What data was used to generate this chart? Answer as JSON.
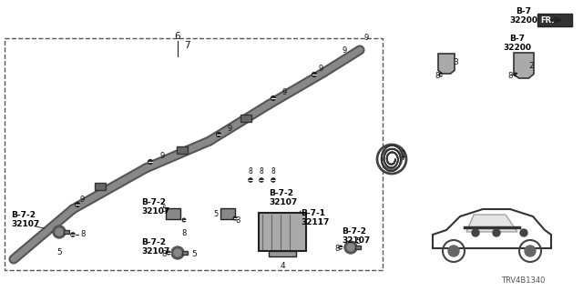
{
  "bg_color": "#ffffff",
  "fig_width": 6.4,
  "fig_height": 3.2,
  "dpi": 100,
  "watermark": "TRV4B1340",
  "labels": {
    "b7_32200_top": "B-7\n32200",
    "b7_32200_right": "B-7\n32200",
    "fr_arrow": "FR.",
    "b72_32107_left": "B-7-2\n32107",
    "b72_32107_mid1": "B-7-2\n32107",
    "b72_32107_mid2": "B-7-2\n32107",
    "b72_32107_mid3": "B-7-2\n32107",
    "b72_32107_mid4": "B-7-2\n32107",
    "b71_32117": "B-7-1\n32117",
    "num1": "1",
    "num2": "2",
    "num3": "3",
    "num4": "4",
    "num5a": "5",
    "num5b": "5",
    "num5c": "5",
    "num6": "6",
    "num7": "7",
    "num8a": "8",
    "num8b": "8",
    "num8c": "8",
    "num8d": "8",
    "num8e": "8",
    "num8f": "8",
    "num8g": "8",
    "num9a": "9",
    "num9b": "9",
    "num9c": "9",
    "num9d": "9",
    "num9e": "9",
    "num9f": "9"
  },
  "line_color": "#222222",
  "text_color": "#111111",
  "bold_label_color": "#000000"
}
